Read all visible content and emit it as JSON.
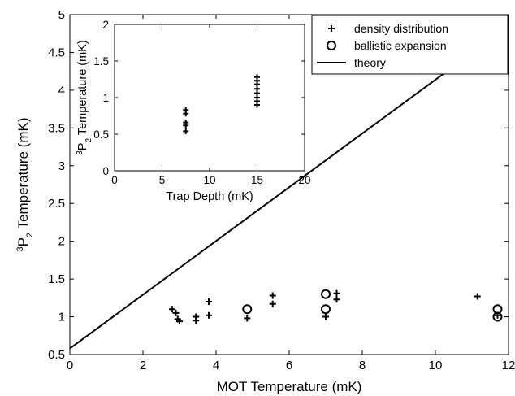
{
  "chart_data": [
    {
      "type": "scatter",
      "xlabel": "MOT Temperature (mK)",
      "ylabel": {
        "pre": "",
        "sup": "3",
        "mid": "P",
        "sub": "2",
        "post": " Temperature (mK)"
      },
      "xlim": [
        0,
        12
      ],
      "ylim": [
        0.5,
        5
      ],
      "xticks": [
        0,
        2,
        4,
        6,
        8,
        10,
        12
      ],
      "yticks": [
        0.5,
        1,
        1.5,
        2,
        2.5,
        3,
        3.5,
        4,
        4.5,
        5
      ],
      "xtick_labels": [
        "0",
        "2",
        "4",
        "6",
        "8",
        "10",
        "12"
      ],
      "ytick_labels": [
        "0.5",
        "1",
        "1.5",
        "2",
        "2.5",
        "3",
        "3.5",
        "4",
        "4.5",
        "5"
      ],
      "grid": false,
      "legend_position": "top-right",
      "series": [
        {
          "name": "density distribution",
          "marker": "plus",
          "points": [
            [
              2.8,
              1.1
            ],
            [
              2.9,
              1.05
            ],
            [
              2.95,
              0.97
            ],
            [
              3.0,
              0.94
            ],
            [
              3.45,
              1.0
            ],
            [
              3.45,
              0.95
            ],
            [
              3.8,
              1.2
            ],
            [
              3.8,
              1.02
            ],
            [
              4.85,
              0.98
            ],
            [
              5.55,
              1.28
            ],
            [
              5.55,
              1.17
            ],
            [
              7.0,
              1.0
            ],
            [
              7.3,
              1.31
            ],
            [
              7.3,
              1.23
            ],
            [
              11.15,
              1.27
            ],
            [
              11.7,
              1.02
            ]
          ]
        },
        {
          "name": "ballistic expansion",
          "marker": "circle",
          "points": [
            [
              4.85,
              1.1
            ],
            [
              7.0,
              1.3
            ],
            [
              7.0,
              1.1
            ],
            [
              11.7,
              1.1
            ],
            [
              11.7,
              1.0
            ]
          ]
        },
        {
          "name": "theory",
          "marker": "line",
          "points": [
            [
              0,
              0.58
            ],
            [
              12,
              4.85
            ]
          ]
        }
      ]
    },
    {
      "type": "scatter",
      "xlabel": "Trap Depth (mK)",
      "ylabel": {
        "pre": "",
        "sup": "3",
        "mid": "P",
        "sub": "2",
        "post": " Temperature (mK)"
      },
      "xlim": [
        0,
        20
      ],
      "ylim": [
        0,
        2
      ],
      "xticks": [
        0,
        5,
        10,
        15,
        20
      ],
      "yticks": [
        0,
        0.5,
        1,
        1.5,
        2
      ],
      "xtick_labels": [
        "0",
        "5",
        "10",
        "15",
        "20"
      ],
      "ytick_labels": [
        "0",
        "0.5",
        "1",
        "1.5",
        "2"
      ],
      "grid": false,
      "series": [
        {
          "marker": "plus",
          "points": [
            [
              7.5,
              0.83
            ],
            [
              7.5,
              0.78
            ],
            [
              7.5,
              0.66
            ],
            [
              7.5,
              0.62
            ],
            [
              7.5,
              0.54
            ],
            [
              15,
              1.28
            ],
            [
              15,
              1.23
            ],
            [
              15,
              1.18
            ],
            [
              15,
              1.12
            ],
            [
              15,
              1.06
            ],
            [
              15,
              1.0
            ],
            [
              15,
              0.95
            ],
            [
              15,
              0.9
            ]
          ]
        }
      ]
    }
  ]
}
